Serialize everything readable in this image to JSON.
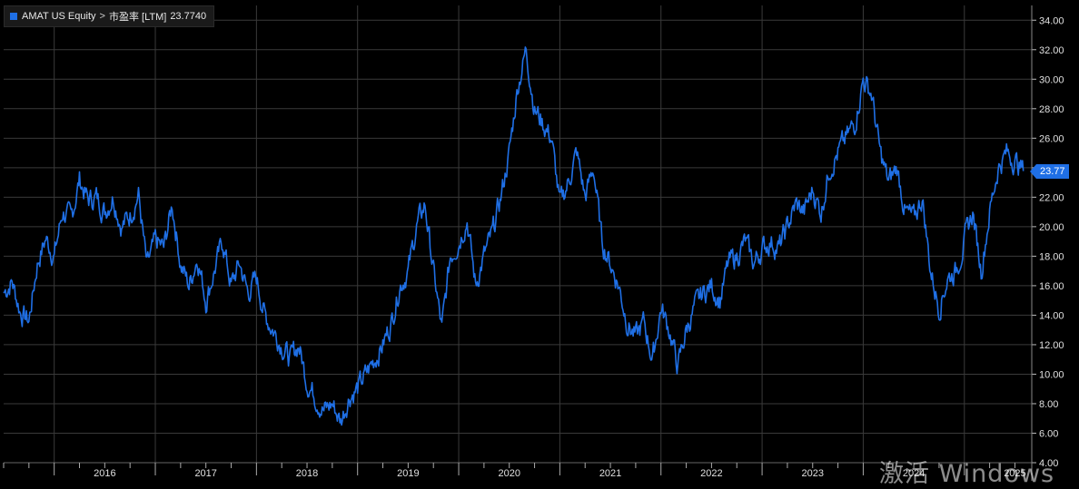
{
  "legend": {
    "ticker": "AMAT US Equity",
    "separator": ">",
    "metric": "市盈率 [LTM]",
    "last_value": "23.7740"
  },
  "last_badge": "23.77",
  "watermark": "激活 Windows",
  "colors": {
    "background": "#000000",
    "series": "#1f6fe5",
    "grid": "#3a3a3a"
  },
  "chart_data": {
    "type": "line",
    "title": "",
    "xlabel": "",
    "ylabel": "",
    "ylim": [
      4,
      35
    ],
    "y_ticks": [
      "4.00",
      "6.00",
      "8.00",
      "10.00",
      "12.00",
      "14.00",
      "16.00",
      "18.00",
      "20.00",
      "22.00",
      "24.00",
      "26.00",
      "28.00",
      "30.00",
      "32.00",
      "34.00"
    ],
    "x_labels": [
      "2016",
      "2017",
      "2018",
      "2019",
      "2020",
      "2021",
      "2022",
      "2023",
      "2024",
      "2025"
    ],
    "xlim": [
      "2015-07",
      "2025-09"
    ],
    "grid": true,
    "legend_position": "top-left",
    "series": [
      {
        "name": "AMAT US Equity > 市盈率 [LTM]",
        "x": [
          "2015-07",
          "2015-08",
          "2015-09",
          "2015-10",
          "2015-11",
          "2015-12",
          "2016-01",
          "2016-02",
          "2016-03",
          "2016-04",
          "2016-05",
          "2016-06",
          "2016-07",
          "2016-08",
          "2016-09",
          "2016-10",
          "2016-11",
          "2016-12",
          "2017-01",
          "2017-02",
          "2017-03",
          "2017-04",
          "2017-05",
          "2017-06",
          "2017-07",
          "2017-08",
          "2017-09",
          "2017-10",
          "2017-11",
          "2017-12",
          "2018-01",
          "2018-02",
          "2018-03",
          "2018-04",
          "2018-05",
          "2018-06",
          "2018-07",
          "2018-08",
          "2018-09",
          "2018-10",
          "2018-11",
          "2018-12",
          "2019-01",
          "2019-02",
          "2019-03",
          "2019-04",
          "2019-05",
          "2019-06",
          "2019-07",
          "2019-08",
          "2019-09",
          "2019-10",
          "2019-11",
          "2019-12",
          "2020-01",
          "2020-02",
          "2020-03",
          "2020-04",
          "2020-05",
          "2020-06",
          "2020-07",
          "2020-08",
          "2020-09",
          "2020-10",
          "2020-11",
          "2020-12",
          "2021-01",
          "2021-02",
          "2021-03",
          "2021-04",
          "2021-05",
          "2021-06",
          "2021-07",
          "2021-08",
          "2021-09",
          "2021-10",
          "2021-11",
          "2021-12",
          "2022-01",
          "2022-02",
          "2022-03",
          "2022-04",
          "2022-05",
          "2022-06",
          "2022-07",
          "2022-08",
          "2022-09",
          "2022-10",
          "2022-11",
          "2022-12",
          "2023-01",
          "2023-02",
          "2023-03",
          "2023-04",
          "2023-05",
          "2023-06",
          "2023-07",
          "2023-08",
          "2023-09",
          "2023-10",
          "2023-11",
          "2023-12",
          "2024-01",
          "2024-02",
          "2024-03",
          "2024-04",
          "2024-05",
          "2024-06",
          "2024-07",
          "2024-08",
          "2024-09",
          "2024-10",
          "2024-11",
          "2024-12",
          "2025-01",
          "2025-02",
          "2025-03",
          "2025-04",
          "2025-05",
          "2025-06",
          "2025-07",
          "2025-08"
        ],
        "values": [
          15.5,
          16.3,
          14.2,
          13.6,
          17.5,
          19.2,
          18.0,
          21.0,
          20.5,
          23.2,
          21.8,
          22.0,
          21.0,
          22.1,
          20.0,
          20.8,
          22.2,
          17.2,
          19.0,
          18.5,
          21.5,
          17.5,
          16.0,
          18.0,
          15.0,
          17.0,
          19.0,
          16.0,
          17.5,
          15.5,
          16.5,
          14.0,
          13.0,
          12.0,
          11.0,
          12.0,
          9.5,
          8.5,
          7.5,
          8.0,
          6.8,
          8.5,
          9.0,
          10.0,
          11.0,
          12.0,
          13.5,
          16.0,
          17.0,
          20.0,
          21.5,
          17.0,
          13.0,
          18.0,
          19.0,
          20.5,
          16.0,
          18.0,
          19.5,
          22.0,
          25.0,
          29.5,
          32.0,
          28.0,
          27.0,
          26.0,
          21.5,
          23.0,
          25.0,
          22.0,
          24.0,
          19.0,
          17.5,
          16.0,
          13.5,
          12.5,
          13.5,
          11.0,
          14.5,
          13.0,
          10.5,
          13.0,
          14.5,
          15.5,
          16.0,
          15.0,
          17.5,
          18.0,
          19.0,
          17.5,
          18.5,
          19.0,
          18.5,
          20.0,
          21.5,
          21.0,
          22.5,
          21.0,
          24.0,
          25.0,
          26.0,
          27.0,
          30.0,
          29.0,
          25.0,
          23.0,
          24.0,
          21.0,
          20.5,
          22.0,
          17.0,
          14.5,
          16.5,
          17.0,
          19.0,
          21.0,
          17.0,
          21.0,
          24.0,
          25.0,
          24.5,
          23.77
        ]
      }
    ]
  }
}
